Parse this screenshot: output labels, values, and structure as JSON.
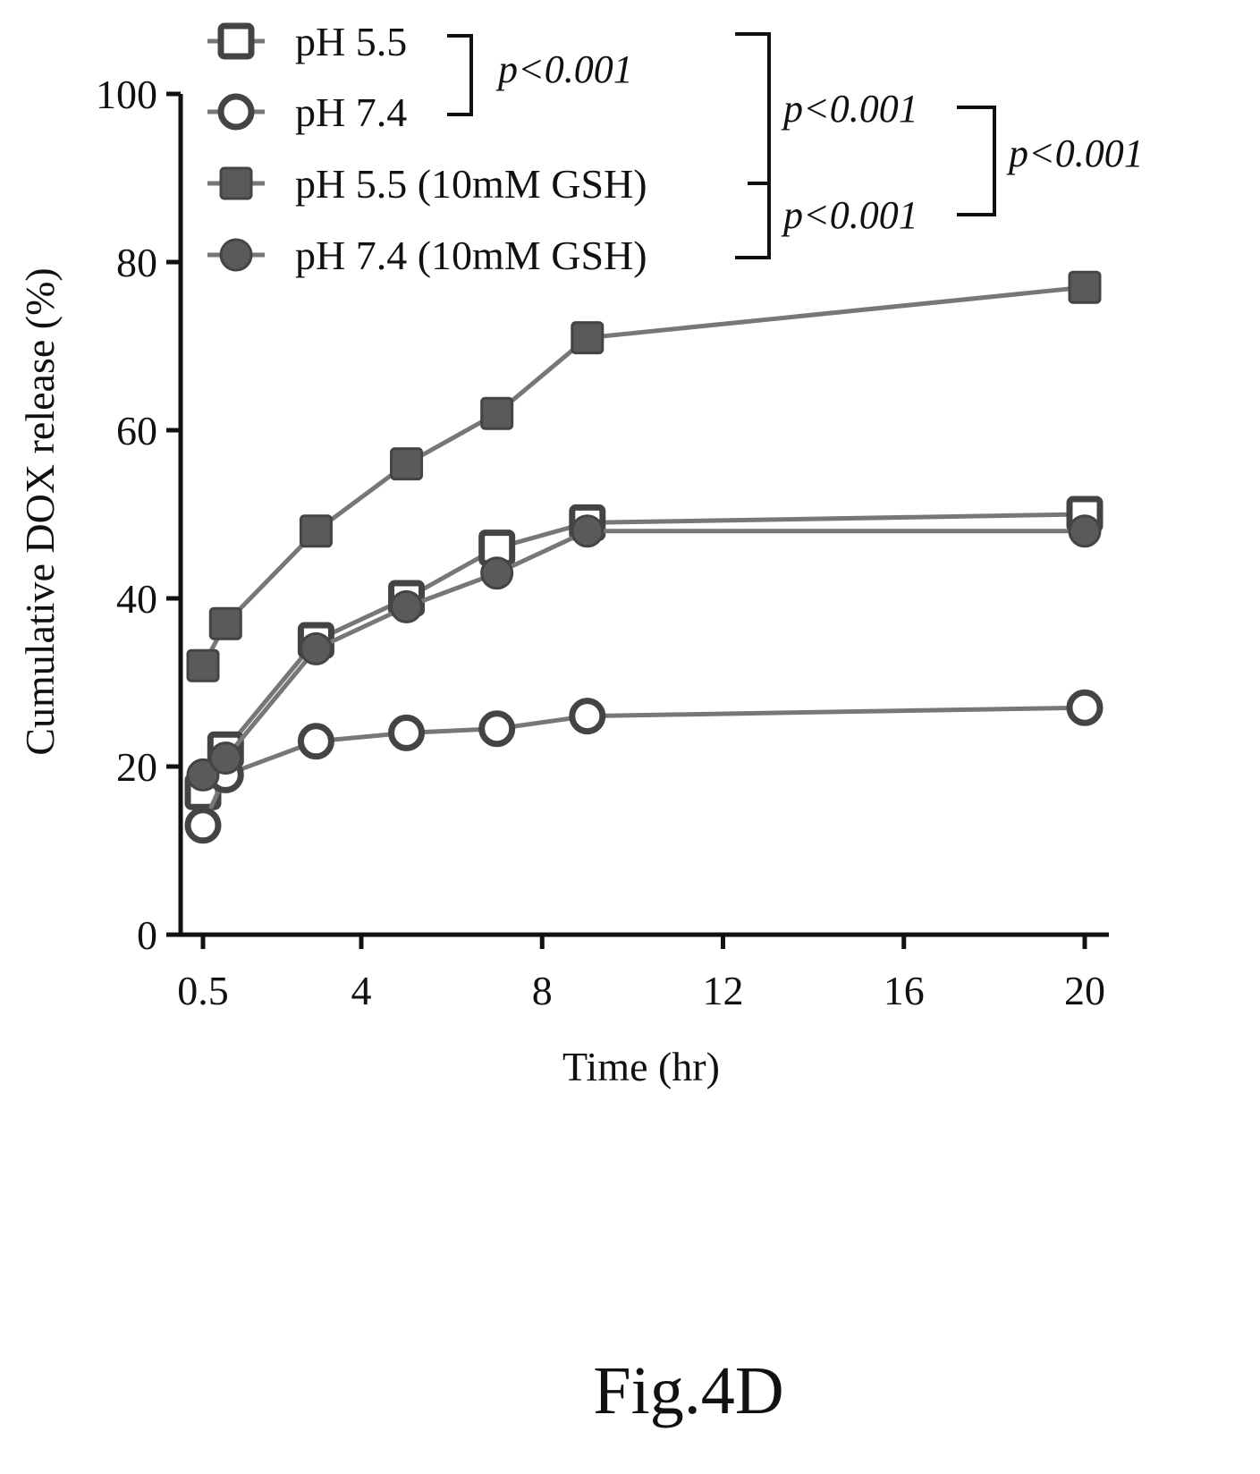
{
  "chart_data": {
    "type": "line",
    "xlabel": "Time (hr)",
    "ylabel": "Cumulative DOX release (%)",
    "xlim": [
      0,
      20.5
    ],
    "ylim": [
      0,
      100
    ],
    "x_ticks": [
      {
        "value": 0.5,
        "label": "0.5"
      },
      {
        "value": 4,
        "label": "4"
      },
      {
        "value": 8,
        "label": "8"
      },
      {
        "value": 12,
        "label": "12"
      },
      {
        "value": 16,
        "label": "16"
      },
      {
        "value": 20,
        "label": "20"
      }
    ],
    "y_ticks": [
      {
        "value": 0,
        "label": "0"
      },
      {
        "value": 20,
        "label": "20"
      },
      {
        "value": 40,
        "label": "40"
      },
      {
        "value": 60,
        "label": "60"
      },
      {
        "value": 80,
        "label": "80"
      },
      {
        "value": 100,
        "label": "100"
      }
    ],
    "grid": false,
    "legend_position": "top-left",
    "series": [
      {
        "name": "pH 5.5",
        "marker": "square-open",
        "x": [
          0.5,
          1,
          3,
          5,
          7,
          9,
          20
        ],
        "y": [
          17,
          22,
          35,
          40,
          46,
          49,
          50
        ]
      },
      {
        "name": "pH 7.4",
        "marker": "circle-open",
        "x": [
          0.5,
          1,
          3,
          5,
          7,
          9,
          20
        ],
        "y": [
          13,
          19,
          23,
          24,
          24.5,
          26,
          27
        ]
      },
      {
        "name": "pH 5.5 (10mM GSH)",
        "marker": "square-filled",
        "x": [
          0.5,
          1,
          3,
          5,
          7,
          9,
          20
        ],
        "y": [
          32,
          37,
          48,
          56,
          62,
          71,
          77
        ]
      },
      {
        "name": "pH 7.4 (10mM GSH)",
        "marker": "circle-filled",
        "x": [
          0.5,
          1,
          3,
          5,
          7,
          9,
          20
        ],
        "y": [
          19,
          21,
          34,
          39,
          43,
          48,
          48
        ]
      }
    ],
    "annotations": [
      {
        "text": "p<0.001",
        "between": [
          "pH 5.5",
          "pH 7.4"
        ]
      },
      {
        "text": "p<0.001",
        "between": [
          "pH 5.5",
          "pH 7.4 (10mM GSH)"
        ]
      },
      {
        "text": "p<0.001",
        "between": [
          "pH 5.5",
          "pH 5.5 (10mM GSH)"
        ]
      },
      {
        "text": "p<0.001",
        "between": [
          "pH 5.5 (10mM GSH)",
          "pH 7.4 (10mM GSH)"
        ]
      },
      {
        "text": "p<0.001",
        "between": [
          "p<0.001 (upper)",
          "p<0.001 (lower)"
        ]
      }
    ]
  },
  "figure_label": "Fig.4D",
  "colors": {
    "line": "#777777",
    "marker_stroke": "#444444",
    "marker_fill": "#5a5a5a",
    "open_fill": "#ffffff",
    "axis": "#111111"
  }
}
